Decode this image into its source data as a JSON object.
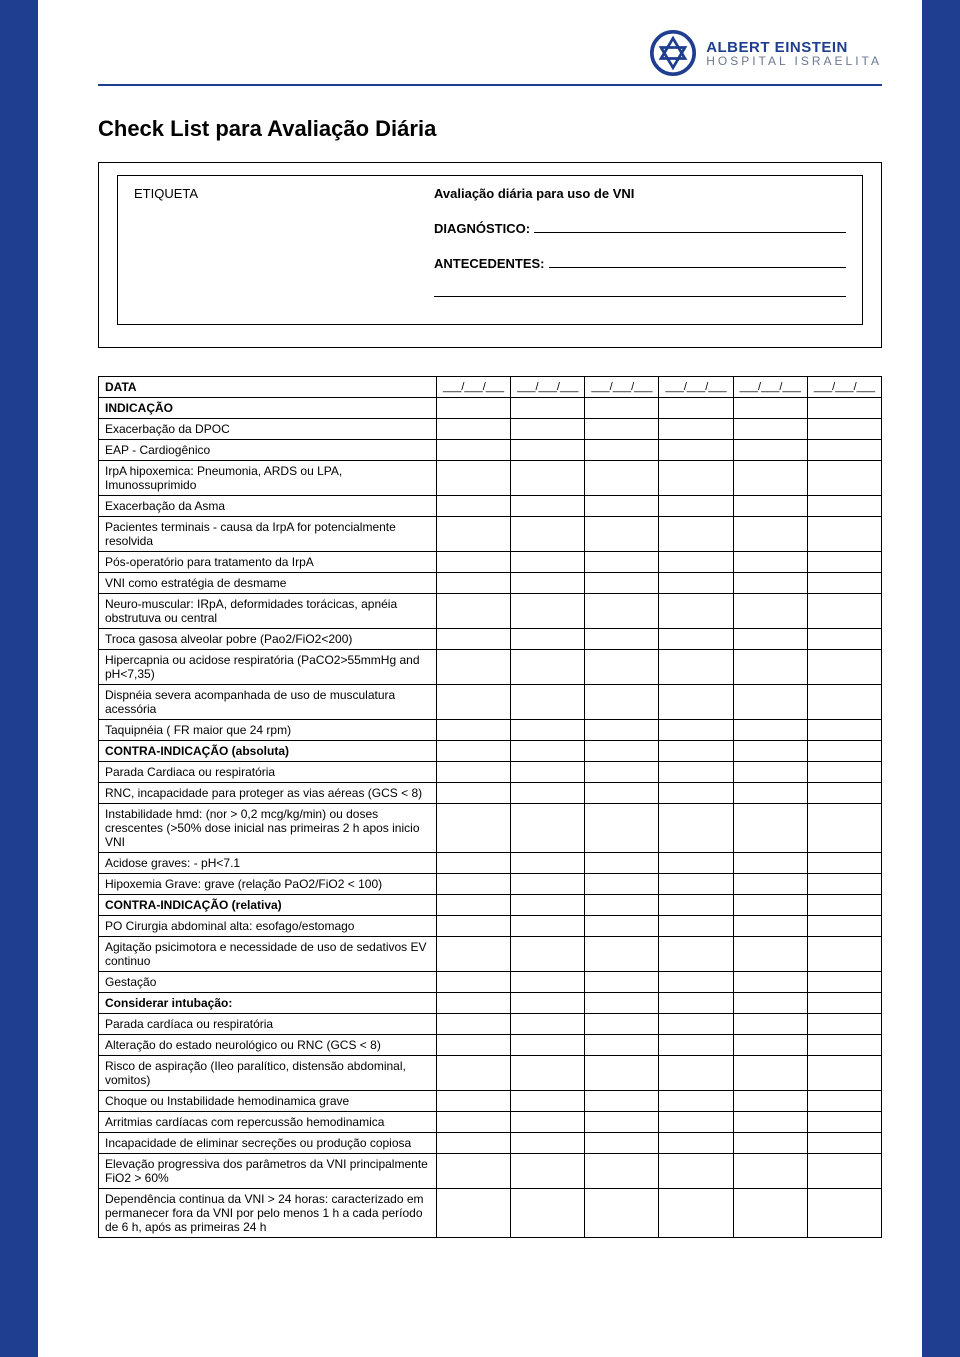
{
  "brand": {
    "name": "ALBERT EINSTEIN",
    "subtitle": "HOSPITAL ISRAELITA",
    "primary_color": "#203e8f",
    "text_color": "#000000",
    "background": "#ffffff"
  },
  "title": "Check List para Avaliação Diária",
  "info_box": {
    "etiqueta_label": "ETIQUETA",
    "avaliacao_label": "Avaliação diária para uso de VNI",
    "diagnostico_label": "DIAGNÓSTICO:",
    "antecedentes_label": "ANTECEDENTES:"
  },
  "date_header": "DATA",
  "date_placeholder": "___/___/___",
  "date_columns": 6,
  "sections": [
    {
      "header": "INDICAÇÃO",
      "rows": [
        "Exacerbação da DPOC",
        "EAP - Cardiogênico",
        "IrpA hipoxemica: Pneumonia, ARDS ou LPA, Imunossuprimido",
        "Exacerbação da Asma",
        "Pacientes terminais - causa da IrpA  for potencialmente resolvida",
        "Pós-operatório para tratamento da IrpA",
        "VNI como estratégia de desmame",
        "Neuro-muscular: IRpA, deformidades torácicas, apnéia obstrutuva ou central",
        "Troca gasosa alveolar pobre (Pao2/FiO2<200)",
        "Hipercapnia ou acidose respiratória (PaCO2>55mmHg and pH<7,35)",
        "Dispnéia severa acompanhada de uso de musculatura acessória",
        "Taquipnéia ( FR maior que 24 rpm)"
      ]
    },
    {
      "header": "CONTRA-INDICAÇÃO (absoluta)",
      "rows": [
        "Parada Cardiaca ou respiratória",
        "RNC, incapacidade para proteger as vias aéreas (GCS < 8)",
        "Instabilidade hmd: (nor > 0,2 mcg/kg/min) ou doses crescentes (>50% dose inicial nas primeiras 2 h apos inicio VNI",
        "Acidose graves: - pH<7.1",
        "Hipoxemia Grave: grave (relação PaO2/FiO2 < 100)"
      ]
    },
    {
      "header": "CONTRA-INDICAÇÃO (relativa)",
      "rows": [
        "PO Cirurgia abdominal alta: esofago/estomago",
        "Agitação psicimotora e necessidade de uso de sedativos EV continuo",
        "Gestação"
      ]
    },
    {
      "header": "Considerar intubação:",
      "rows": [
        "Parada cardíaca ou respiratória",
        "Alteração do estado neurológico ou RNC (GCS < 8)",
        "Risco de aspiração (Ileo paralítico, distensão abdominal, vomitos)",
        "Choque ou Instabilidade hemodinamica grave",
        "Arritmias cardíacas com repercussão hemodinamica",
        "Incapacidade de eliminar secreções ou produção copiosa",
        "Elevação progressiva dos parâmetros da VNI principalmente FiO2 > 60%",
        "Dependência continua da VNI > 24 horas: caracterizado em permanecer fora da VNI por pelo menos 1 h a cada período de 6 h, após as primeiras 24 h"
      ]
    }
  ]
}
